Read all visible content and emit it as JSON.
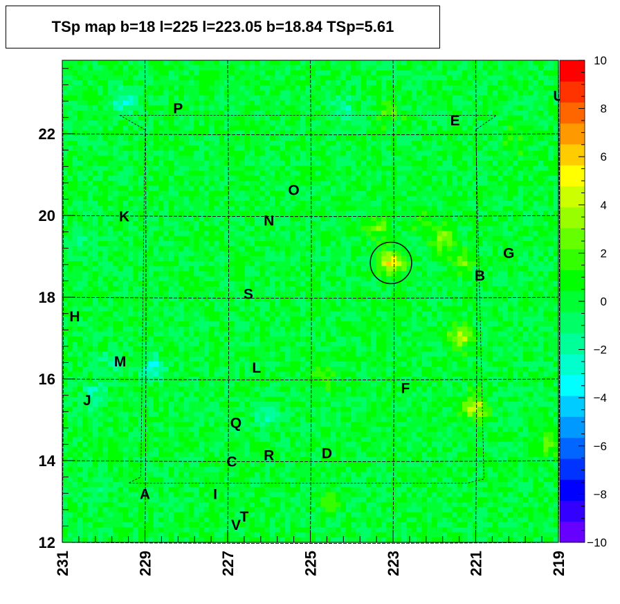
{
  "chart_data": {
    "type": "heatmap",
    "title": "TSp map b=18 l=225 l=223.05 b=18.84 TSp=5.61",
    "x_axis": {
      "range": [
        231,
        219
      ],
      "reversed": true,
      "ticks": [
        "231",
        "229",
        "227",
        "225",
        "223",
        "221",
        "219"
      ]
    },
    "y_axis": {
      "range": [
        12,
        23.8
      ],
      "ticks": [
        "12",
        "14",
        "16",
        "18",
        "20",
        "22"
      ]
    },
    "color_scale": {
      "range": [
        -10,
        10
      ],
      "ticks": [
        "10",
        "8",
        "6",
        "4",
        "2",
        "0",
        "−2",
        "−4",
        "−6",
        "−8",
        "−10"
      ],
      "colors": [
        "#6600ff",
        "#3300ff",
        "#0000ff",
        "#0033ff",
        "#0066ff",
        "#0099ff",
        "#00ccff",
        "#00ffff",
        "#00ffcc",
        "#00ff99",
        "#00ff66",
        "#00ff33",
        "#00ff00",
        "#33ff00",
        "#66ff00",
        "#99ff00",
        "#ccff00",
        "#ffff00",
        "#ffcc00",
        "#ff9900",
        "#ff6600",
        "#ff3300",
        "#ff0000"
      ]
    },
    "background_tsp": 0,
    "hotspots": [
      {
        "l": 223.05,
        "b": 18.84,
        "tsp": 5.61
      },
      {
        "l": 223.4,
        "b": 19.7,
        "tsp": 2.5
      },
      {
        "l": 221.8,
        "b": 19.4,
        "tsp": 3.0
      },
      {
        "l": 221.3,
        "b": 18.9,
        "tsp": 2.5
      },
      {
        "l": 221.4,
        "b": 17.0,
        "tsp": 4.0
      },
      {
        "l": 221.0,
        "b": 15.3,
        "tsp": 4.5
      },
      {
        "l": 222.3,
        "b": 19.9,
        "tsp": 2.0
      },
      {
        "l": 224.7,
        "b": 16.0,
        "tsp": 1.8
      },
      {
        "l": 219.2,
        "b": 14.4,
        "tsp": 2.5
      },
      {
        "l": 224.5,
        "b": 13.0,
        "tsp": 1.5
      },
      {
        "l": 220.0,
        "b": 21.8,
        "tsp": 1.5
      },
      {
        "l": 223.1,
        "b": 22.5,
        "tsp": 2.0
      }
    ],
    "coldspots": [
      {
        "l": 229.5,
        "b": 22.8,
        "tsp": -2.5
      },
      {
        "l": 224.2,
        "b": 22.6,
        "tsp": -2.0
      },
      {
        "l": 228.8,
        "b": 16.3,
        "tsp": -2.5
      },
      {
        "l": 230.2,
        "b": 15.6,
        "tsp": -2.0
      },
      {
        "l": 229.8,
        "b": 16.4,
        "tsp": -1.8
      },
      {
        "l": 230.1,
        "b": 13.4,
        "tsp": -1.5
      },
      {
        "l": 230.7,
        "b": 19.3,
        "tsp": -1.5
      },
      {
        "l": 226.0,
        "b": 15.1,
        "tsp": -1.8
      }
    ],
    "circle_marker": {
      "l": 223.05,
      "b": 18.84,
      "radius_deg": 0.5
    },
    "source_labels": [
      {
        "text": "P",
        "l": 228.2,
        "b": 22.6
      },
      {
        "text": "E",
        "l": 221.5,
        "b": 22.3
      },
      {
        "text": "U",
        "l": 219.0,
        "b": 22.9
      },
      {
        "text": "O",
        "l": 225.4,
        "b": 20.6
      },
      {
        "text": "K",
        "l": 229.5,
        "b": 19.95
      },
      {
        "text": "N",
        "l": 226.0,
        "b": 19.85
      },
      {
        "text": "G",
        "l": 220.2,
        "b": 19.05
      },
      {
        "text": "B",
        "l": 220.9,
        "b": 18.5
      },
      {
        "text": "S",
        "l": 226.5,
        "b": 18.05
      },
      {
        "text": "H",
        "l": 230.7,
        "b": 17.5
      },
      {
        "text": "M",
        "l": 229.6,
        "b": 16.4
      },
      {
        "text": "L",
        "l": 226.3,
        "b": 16.25
      },
      {
        "text": "F",
        "l": 222.7,
        "b": 15.75
      },
      {
        "text": "J",
        "l": 230.4,
        "b": 15.45
      },
      {
        "text": "Q",
        "l": 226.8,
        "b": 14.9
      },
      {
        "text": "D",
        "l": 224.6,
        "b": 14.15
      },
      {
        "text": "R",
        "l": 226.0,
        "b": 14.1
      },
      {
        "text": "C",
        "l": 226.9,
        "b": 13.95
      },
      {
        "text": "A",
        "l": 229.0,
        "b": 13.15
      },
      {
        "text": "I",
        "l": 227.3,
        "b": 13.15
      },
      {
        "text": "T",
        "l": 226.6,
        "b": 12.6
      },
      {
        "text": "V",
        "l": 226.8,
        "b": 12.4
      }
    ]
  }
}
